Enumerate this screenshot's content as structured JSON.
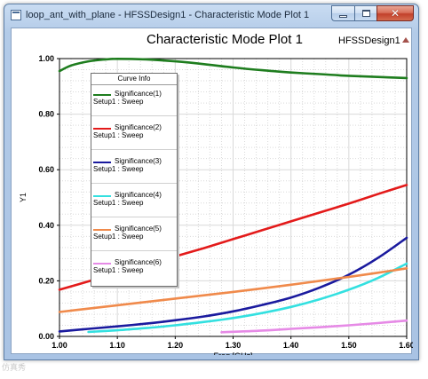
{
  "window": {
    "title": "loop_ant_with_plane - HFSSDesign1 - Characteristic Mode Plot 1"
  },
  "plot": {
    "title": "Characteristic Mode Plot 1",
    "design_name": "HFSSDesign1"
  },
  "legend": {
    "header": "Curve Info"
  },
  "watermark": "仿真秀",
  "colors": {
    "grid": "#d9d9d9",
    "axis": "#000000"
  },
  "chart_data": {
    "type": "line",
    "title": "Characteristic Mode Plot 1",
    "xlabel": "Freq [GHz]",
    "ylabel": "Y1",
    "xlim": [
      1.0,
      1.6
    ],
    "ylim": [
      0.0,
      1.0
    ],
    "xticks": [
      "1.00",
      "1.10",
      "1.20",
      "1.30",
      "1.40",
      "1.50",
      "1.60"
    ],
    "yticks": [
      "0.00",
      "0.20",
      "0.40",
      "0.60",
      "0.80",
      "1.00"
    ],
    "grid": true,
    "legend_position": "top-left",
    "series": [
      {
        "name": "Significance(1)",
        "sub": "Setup1 : Sweep",
        "color": "#1e7d1e",
        "x": [
          1.0,
          1.02,
          1.05,
          1.08,
          1.1,
          1.15,
          1.2,
          1.25,
          1.3,
          1.35,
          1.4,
          1.45,
          1.5,
          1.55,
          1.6
        ],
        "y": [
          0.955,
          0.975,
          0.99,
          0.997,
          0.999,
          0.997,
          0.99,
          0.98,
          0.968,
          0.958,
          0.95,
          0.944,
          0.938,
          0.934,
          0.93
        ]
      },
      {
        "name": "Significance(2)",
        "sub": "Setup1 : Sweep",
        "color": "#e31a1a",
        "x": [
          1.0,
          1.05,
          1.1,
          1.15,
          1.2,
          1.25,
          1.3,
          1.35,
          1.4,
          1.45,
          1.5,
          1.55,
          1.6
        ],
        "y": [
          0.168,
          0.198,
          0.228,
          0.258,
          0.288,
          0.318,
          0.35,
          0.382,
          0.414,
          0.446,
          0.478,
          0.512,
          0.545
        ]
      },
      {
        "name": "Significance(3)",
        "sub": "Setup1 : Sweep",
        "color": "#1a1a9e",
        "x": [
          1.0,
          1.05,
          1.1,
          1.15,
          1.2,
          1.25,
          1.3,
          1.35,
          1.4,
          1.45,
          1.5,
          1.55,
          1.6
        ],
        "y": [
          0.018,
          0.027,
          0.036,
          0.046,
          0.058,
          0.072,
          0.09,
          0.113,
          0.14,
          0.176,
          0.222,
          0.282,
          0.355
        ]
      },
      {
        "name": "Significance(4)",
        "sub": "Setup1 : Sweep",
        "color": "#33e0e0",
        "x": [
          1.05,
          1.1,
          1.15,
          1.2,
          1.25,
          1.3,
          1.35,
          1.4,
          1.45,
          1.5,
          1.55,
          1.6
        ],
        "y": [
          0.016,
          0.022,
          0.03,
          0.04,
          0.052,
          0.066,
          0.084,
          0.106,
          0.134,
          0.168,
          0.21,
          0.262
        ]
      },
      {
        "name": "Significance(5)",
        "sub": "Setup1 : Sweep",
        "color": "#f08a4b",
        "x": [
          1.0,
          1.05,
          1.1,
          1.15,
          1.2,
          1.25,
          1.3,
          1.35,
          1.4,
          1.45,
          1.5,
          1.55,
          1.6
        ],
        "y": [
          0.088,
          0.1,
          0.112,
          0.124,
          0.136,
          0.148,
          0.16,
          0.173,
          0.186,
          0.2,
          0.214,
          0.229,
          0.245
        ]
      },
      {
        "name": "Significance(6)",
        "sub": "Setup1 : Sweep",
        "color": "#e68ae6",
        "x": [
          1.28,
          1.35,
          1.4,
          1.45,
          1.5,
          1.55,
          1.6
        ],
        "y": [
          0.015,
          0.021,
          0.027,
          0.033,
          0.04,
          0.048,
          0.057
        ]
      }
    ]
  }
}
